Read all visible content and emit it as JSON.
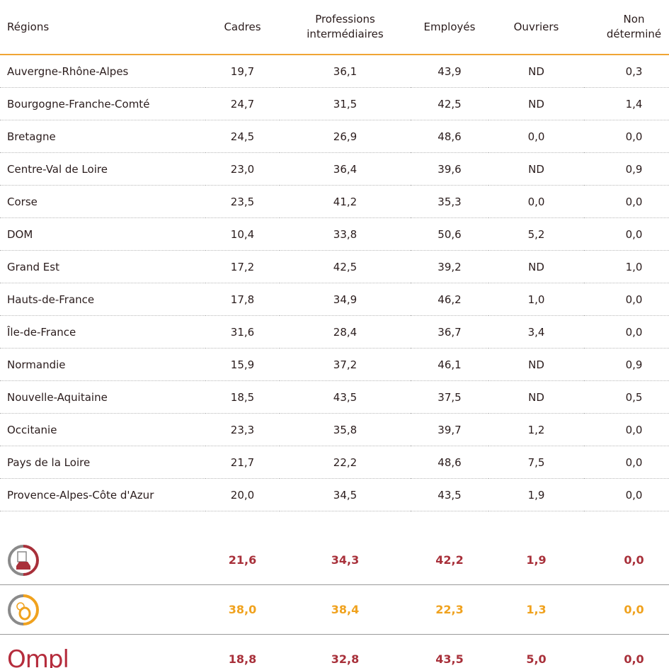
{
  "table": {
    "header": [
      "Régions",
      "Cadres",
      "Professions intermédiaires",
      "Employés",
      "Ouvriers",
      "Non déterminé"
    ],
    "rows": [
      [
        "Auvergne-Rhône-Alpes",
        "19,7",
        "36,1",
        "43,9",
        "ND",
        "0,3"
      ],
      [
        "Bourgogne-Franche-Comté",
        "24,7",
        "31,5",
        "42,5",
        "ND",
        "1,4"
      ],
      [
        "Bretagne",
        "24,5",
        "26,9",
        "48,6",
        "0,0",
        "0,0"
      ],
      [
        "Centre-Val de Loire",
        "23,0",
        "36,4",
        "39,6",
        "ND",
        "0,9"
      ],
      [
        "Corse",
        "23,5",
        "41,2",
        "35,3",
        "0,0",
        "0,0"
      ],
      [
        "DOM",
        "10,4",
        "33,8",
        "50,6",
        "5,2",
        "0,0"
      ],
      [
        "Grand Est",
        "17,2",
        "42,5",
        "39,2",
        "ND",
        "1,0"
      ],
      [
        "Hauts-de-France",
        "17,8",
        "34,9",
        "46,2",
        "1,0",
        "0,0"
      ],
      [
        "Île-de-France",
        "31,6",
        "28,4",
        "36,7",
        "3,4",
        "0,0"
      ],
      [
        "Normandie",
        "15,9",
        "37,2",
        "46,1",
        "ND",
        "0,9"
      ],
      [
        "Nouvelle-Aquitaine",
        "18,5",
        "43,5",
        "37,5",
        "ND",
        "0,5"
      ],
      [
        "Occitanie",
        "23,3",
        "35,8",
        "39,7",
        "1,2",
        "0,0"
      ],
      [
        "Pays de la Loire",
        "21,7",
        "22,2",
        "48,6",
        "7,5",
        "0,0"
      ],
      [
        "Provence-Alpes-Côte d'Azur",
        "20,0",
        "34,5",
        "43,5",
        "1,9",
        "0,0"
      ]
    ],
    "summary": [
      [
        "21,6",
        "34,3",
        "42,2",
        "1,9",
        "0,0"
      ],
      [
        "38,0",
        "38,4",
        "22,3",
        "1,3",
        "0,0"
      ],
      [
        "18,8",
        "32,8",
        "43,5",
        "5,0",
        "0,0"
      ]
    ],
    "logo": "Ompl"
  }
}
